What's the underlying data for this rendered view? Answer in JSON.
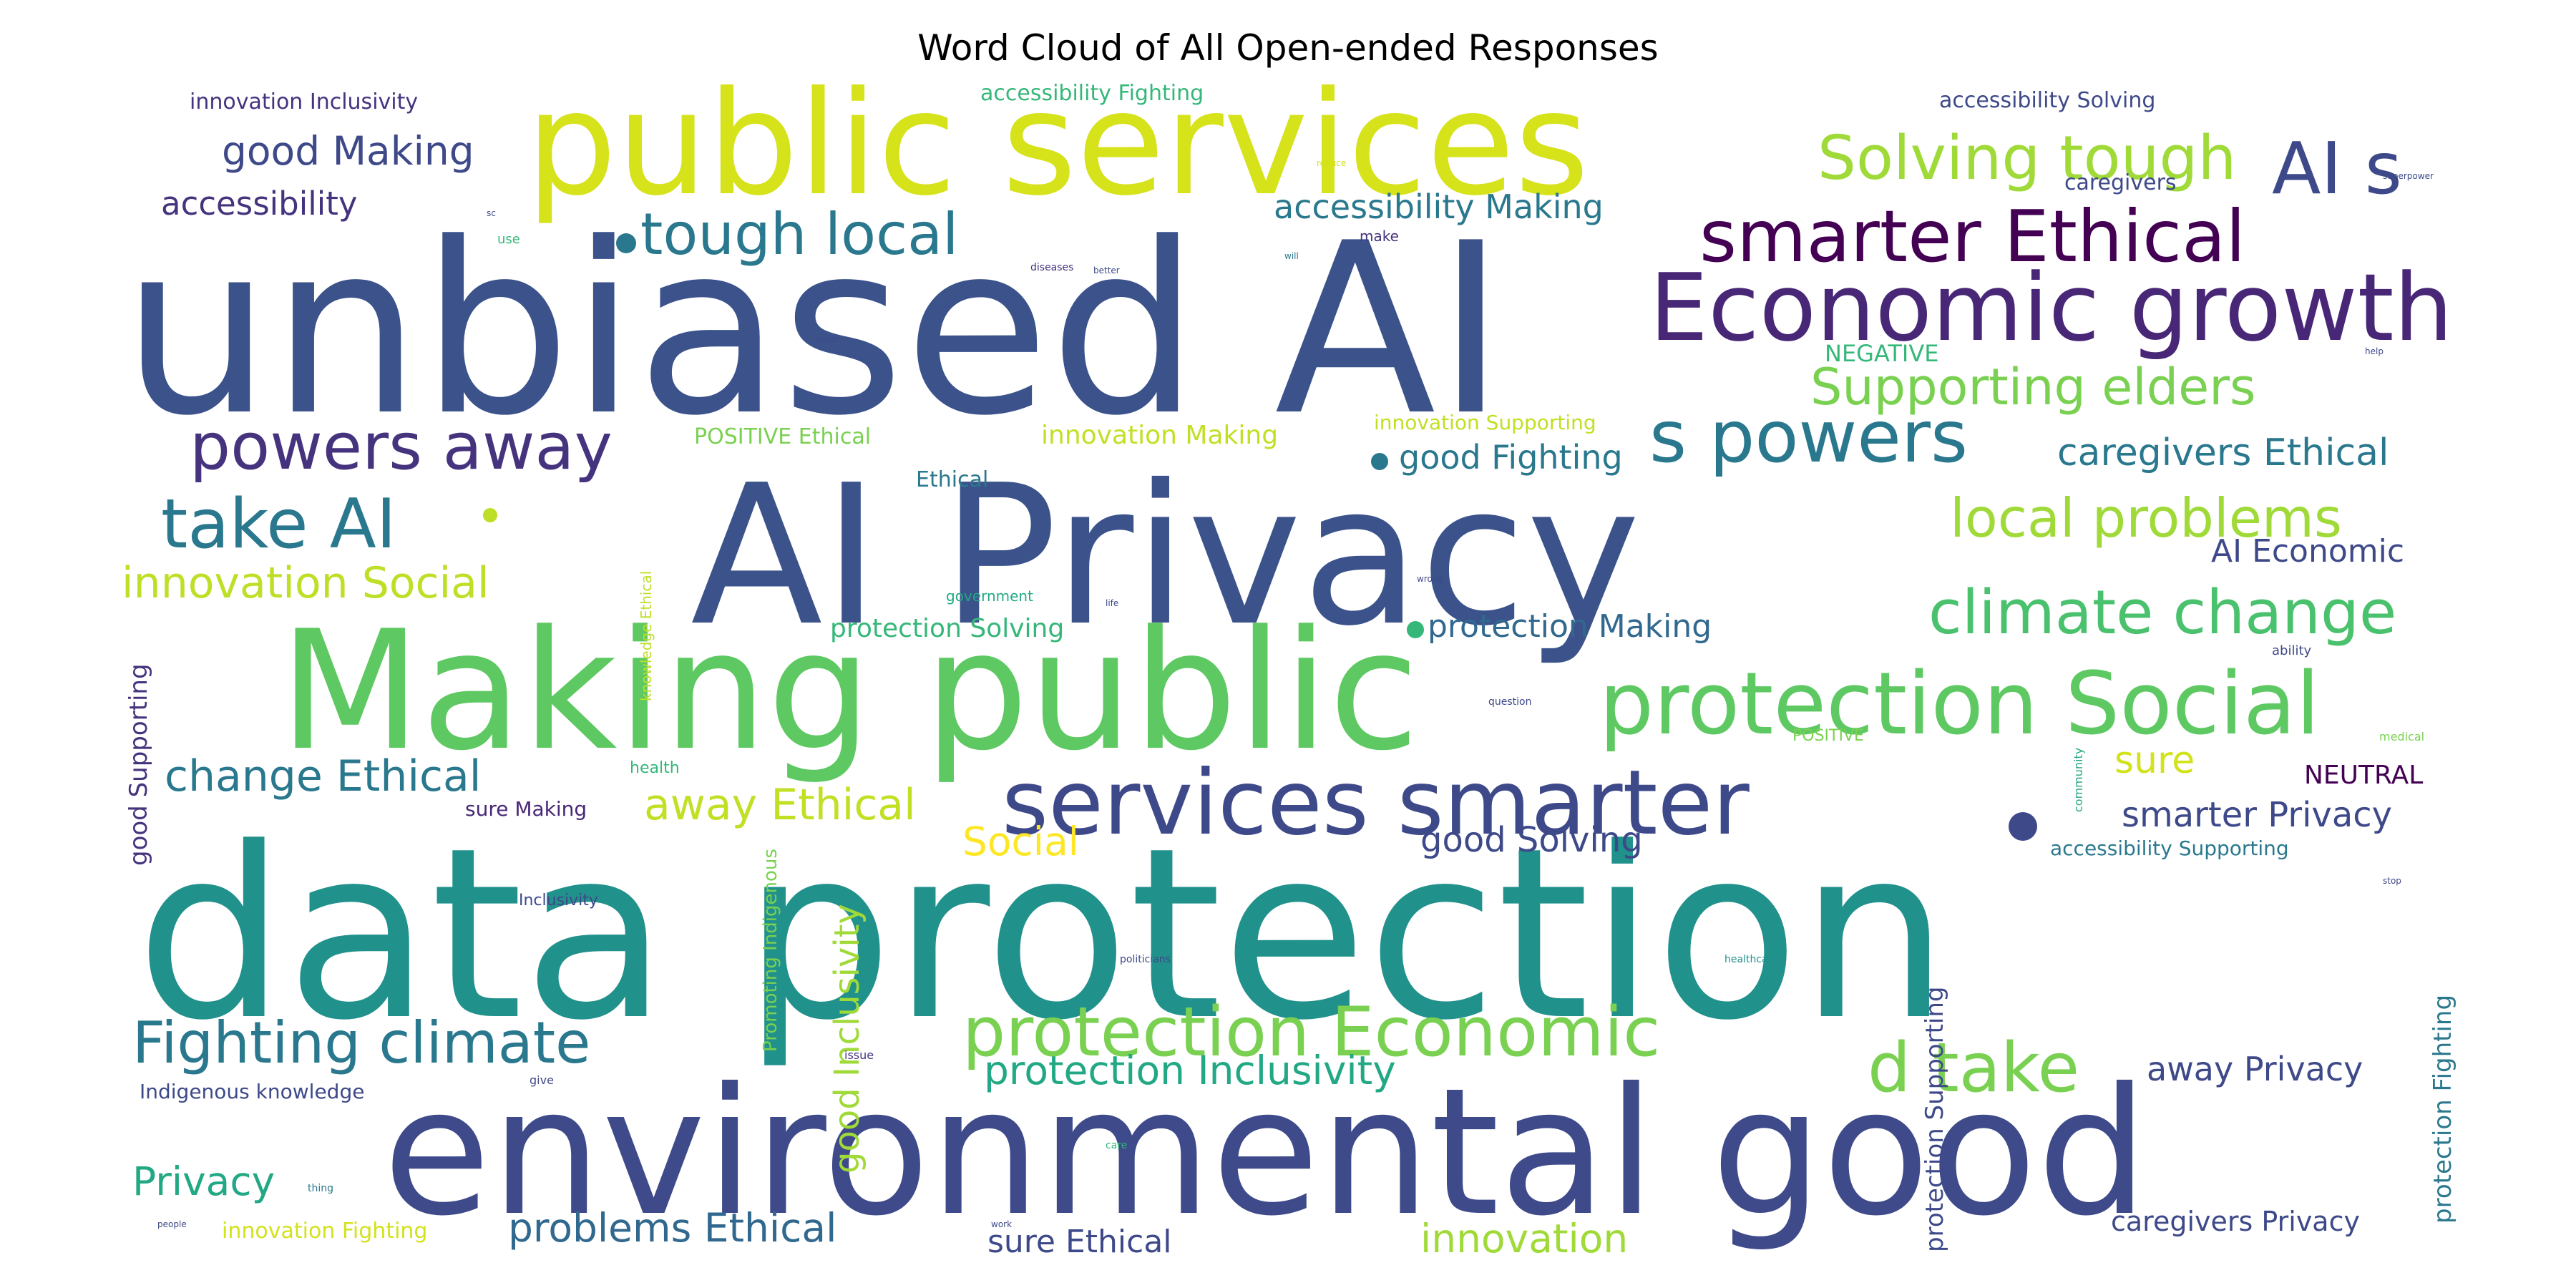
{
  "title": "Word Cloud of All Open-ended Responses",
  "palette": "viridis",
  "chart_data": {
    "type": "wordcloud",
    "title": "Word Cloud of All Open-ended Responses",
    "grid": false,
    "words": [
      {
        "text": "unbiased AI",
        "weight": 100,
        "color": "#3b528b"
      },
      {
        "text": "data protection",
        "weight": 100,
        "color": "#21918c"
      },
      {
        "text": "AI Privacy",
        "weight": 92,
        "color": "#3b528b"
      },
      {
        "text": "environmental good",
        "weight": 88,
        "color": "#3e4a89"
      },
      {
        "text": "Making public",
        "weight": 80,
        "color": "#5ec962"
      },
      {
        "text": "public services",
        "weight": 70,
        "color": "#d6e21a"
      },
      {
        "text": "Economic growth",
        "weight": 46,
        "color": "#482777"
      },
      {
        "text": "services smarter",
        "weight": 46,
        "color": "#3e4989"
      },
      {
        "text": "protection Social",
        "weight": 42,
        "color": "#5ec962"
      },
      {
        "text": "smarter Ethical",
        "weight": 36,
        "color": "#440154"
      },
      {
        "text": "AI s",
        "weight": 36,
        "color": "#3e4989"
      },
      {
        "text": "s powers",
        "weight": 36,
        "color": "#2a788e"
      },
      {
        "text": "protection Economic",
        "weight": 36,
        "color": "#7ad151"
      },
      {
        "text": "d take",
        "weight": 36,
        "color": "#7ad151"
      },
      {
        "text": "Solving tough",
        "weight": 34,
        "color": "#a0da39"
      },
      {
        "text": "climate change",
        "weight": 34,
        "color": "#4ac16d"
      },
      {
        "text": "take AI",
        "weight": 34,
        "color": "#2a788e"
      },
      {
        "text": "powers away",
        "weight": 32,
        "color": "#46337e"
      },
      {
        "text": "Fighting climate",
        "weight": 32,
        "color": "#2a788e"
      },
      {
        "text": "tough local",
        "weight": 30,
        "color": "#2a788e"
      },
      {
        "text": "local problems",
        "weight": 30,
        "color": "#a0da39"
      },
      {
        "text": "Supporting elders",
        "weight": 28,
        "color": "#7ad151"
      },
      {
        "text": "protection Inclusivity",
        "weight": 24,
        "color": "#22a884"
      },
      {
        "text": "innovation Social",
        "weight": 24,
        "color": "#bddf26"
      },
      {
        "text": "change Ethical",
        "weight": 24,
        "color": "#2a788e"
      },
      {
        "text": "away Ethical",
        "weight": 24,
        "color": "#c2df23"
      },
      {
        "text": "Social",
        "weight": 24,
        "color": "#fde725"
      },
      {
        "text": "Privacy",
        "weight": 24,
        "color": "#22a884"
      },
      {
        "text": "problems Ethical",
        "weight": 24,
        "color": "#31688e"
      },
      {
        "text": "innovation",
        "weight": 24,
        "color": "#a0da39"
      },
      {
        "text": "good Making",
        "weight": 22,
        "color": "#3e4989"
      },
      {
        "text": "caregivers Ethical",
        "weight": 22,
        "color": "#2a788e"
      },
      {
        "text": "smarter Privacy",
        "weight": 20,
        "color": "#3e4989"
      },
      {
        "text": "sure",
        "weight": 20,
        "color": "#d2e21b"
      },
      {
        "text": "good Solving",
        "weight": 20,
        "color": "#3e4989"
      },
      {
        "text": "away Privacy",
        "weight": 20,
        "color": "#3e4989"
      },
      {
        "text": "accessibility Making",
        "weight": 20,
        "color": "#2a788e"
      },
      {
        "text": "accessibility",
        "weight": 20,
        "color": "#46337e"
      },
      {
        "text": "good Fighting",
        "weight": 20,
        "color": "#2a788e"
      },
      {
        "text": "protection Making",
        "weight": 20,
        "color": "#31688e"
      },
      {
        "text": "AI Economic",
        "weight": 20,
        "color": "#3e4989"
      },
      {
        "text": "sure Ethical",
        "weight": 20,
        "color": "#3e4989"
      },
      {
        "text": "caregivers Privacy",
        "weight": 18,
        "color": "#3e4989"
      },
      {
        "text": "good Inclusivity",
        "weight": 20,
        "color": "#a0da39"
      },
      {
        "text": "good Supporting",
        "weight": 16,
        "color": "#46337e"
      },
      {
        "text": "protection Supporting",
        "weight": 16,
        "color": "#3e4989"
      },
      {
        "text": "protection Fighting",
        "weight": 16,
        "color": "#2a788e"
      },
      {
        "text": "innovation Making",
        "weight": 16,
        "color": "#c2df23"
      },
      {
        "text": "protection Solving",
        "weight": 16,
        "color": "#35b779"
      },
      {
        "text": "NEUTRAL",
        "weight": 16,
        "color": "#440154"
      },
      {
        "text": "innovation Inclusivity",
        "weight": 14,
        "color": "#46337e"
      },
      {
        "text": "accessibility Fighting",
        "weight": 14,
        "color": "#35b779"
      },
      {
        "text": "accessibility Solving",
        "weight": 14,
        "color": "#3e4989"
      },
      {
        "text": "accessibility Supporting",
        "weight": 14,
        "color": "#2a788e"
      },
      {
        "text": "POSITIVE Ethical",
        "weight": 14,
        "color": "#7ad151"
      },
      {
        "text": "innovation Supporting",
        "weight": 12,
        "color": "#c2df23"
      },
      {
        "text": "NEGATIVE",
        "weight": 14,
        "color": "#35b779"
      },
      {
        "text": "Ethical",
        "weight": 14,
        "color": "#2a788e"
      },
      {
        "text": "innovation Fighting",
        "weight": 14,
        "color": "#d2e21b"
      },
      {
        "text": "caregivers",
        "weight": 14,
        "color": "#3e4989"
      },
      {
        "text": "sure Making",
        "weight": 14,
        "color": "#482777"
      },
      {
        "text": "Indigenous knowledge",
        "weight": 12,
        "color": "#3e4989"
      },
      {
        "text": "Inclusivity",
        "weight": 10,
        "color": "#3e4989"
      },
      {
        "text": "Promoting Indigenous",
        "weight": 12,
        "color": "#7ad151"
      },
      {
        "text": "knowledge Ethical",
        "weight": 8,
        "color": "#bddf26"
      },
      {
        "text": "government",
        "weight": 8,
        "color": "#22a884"
      },
      {
        "text": "health",
        "weight": 9,
        "color": "#35b779"
      },
      {
        "text": "POSITIVE",
        "weight": 9,
        "color": "#7ad151"
      },
      {
        "text": "community",
        "weight": 7,
        "color": "#22a884"
      },
      {
        "text": "ability",
        "weight": 7,
        "color": "#3e4989"
      },
      {
        "text": "medical",
        "weight": 7,
        "color": "#7ad151"
      },
      {
        "text": "question",
        "weight": 6,
        "color": "#3e4989"
      },
      {
        "text": "politicians",
        "weight": 6,
        "color": "#3e4989"
      },
      {
        "text": "healthcare",
        "weight": 6,
        "color": "#21918c"
      },
      {
        "text": "issue",
        "weight": 7,
        "color": "#46337e"
      },
      {
        "text": "give",
        "weight": 7,
        "color": "#3e4989"
      },
      {
        "text": "care",
        "weight": 6,
        "color": "#35b779"
      },
      {
        "text": "thing",
        "weight": 6,
        "color": "#2a788e"
      },
      {
        "text": "people",
        "weight": 5,
        "color": "#3e4989"
      },
      {
        "text": "work",
        "weight": 5,
        "color": "#3e4989"
      },
      {
        "text": "diseases",
        "weight": 6,
        "color": "#46337e"
      },
      {
        "text": "better",
        "weight": 5,
        "color": "#3e4989"
      },
      {
        "text": "super",
        "weight": 5,
        "color": "#3e4989"
      },
      {
        "text": "make",
        "weight": 7,
        "color": "#46337e"
      },
      {
        "text": "use",
        "weight": 7,
        "color": "#35b779"
      },
      {
        "text": "reduce",
        "weight": 5,
        "color": "#d2e21b"
      },
      {
        "text": "life",
        "weight": 5,
        "color": "#3e4989"
      },
      {
        "text": "wrong",
        "weight": 5,
        "color": "#3e4989"
      },
      {
        "text": "superpower",
        "weight": 5,
        "color": "#3e4989"
      },
      {
        "text": "help",
        "weight": 5,
        "color": "#3e4989"
      },
      {
        "text": "stop",
        "weight": 5,
        "color": "#3e4989"
      },
      {
        "text": "will",
        "weight": 5,
        "color": "#2a788e"
      },
      {
        "text": "sc",
        "weight": 5,
        "color": "#3e4989"
      }
    ]
  }
}
